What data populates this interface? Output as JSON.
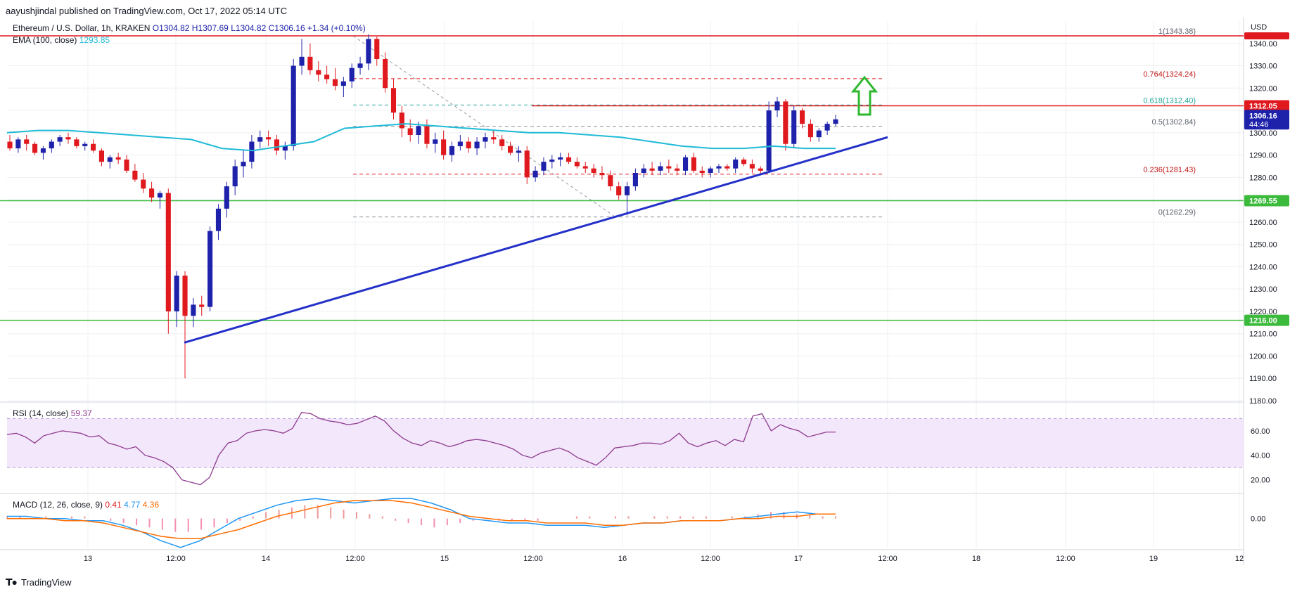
{
  "header": {
    "published": "aayushjindal published on TradingView.com, Oct 17, 2022 05:14 UTC"
  },
  "legend": {
    "symbol": "Ethereum / U.S. Dollar, 1h, KRAKEN",
    "open": "O1304.82",
    "high": "H1307.69",
    "low": "L1304.82",
    "close": "C1306.16",
    "change": "+1.34 (+0.10%)",
    "ema_label": "EMA (100, close)",
    "ema_value": "1293.85",
    "rsi_label": "RSI (14, close)",
    "rsi_value": "59.37",
    "macd_label": "MACD (12, 26, close, 9)",
    "macd_v1": "0.41",
    "macd_v2": "4.77",
    "macd_v3": "4.36"
  },
  "footer": {
    "brand": "TradingView"
  },
  "colors": {
    "up": "#1e22aa",
    "down": "#e0191e",
    "ema": "#1fbad6",
    "trend": "#2431c9",
    "support": "#3cba3c",
    "resistance": "#e0191e",
    "rsi": "#8e3a8e",
    "rsi_band": "#f3e7fb",
    "macd": "#2196f3",
    "signal": "#ff6d00",
    "arrow": "#2eb82e"
  },
  "chart_data": {
    "type": "candlestick",
    "symbol": "Ethereum / U.S. Dollar",
    "interval": "1h",
    "exchange": "KRAKEN",
    "currency": "USD",
    "ylim": [
      1180,
      1350
    ],
    "price_ticks": [
      "1180.00",
      "1190.00",
      "1200.00",
      "1210.00",
      "1220.00",
      "1230.00",
      "1240.00",
      "1250.00",
      "1260.00",
      "1270.00",
      "1280.00",
      "1290.00",
      "1300.00",
      "1310.00",
      "1320.00",
      "1330.00",
      "1340.00"
    ],
    "x_ticks": [
      "13",
      "12:00",
      "14",
      "12:00",
      "15",
      "12:00",
      "16",
      "12:00",
      "17",
      "12:00",
      "18",
      "12:00",
      "19",
      "12"
    ],
    "candles_ohlc": [
      [
        1296,
        1299,
        1292,
        1293
      ],
      [
        1293,
        1298,
        1291,
        1297
      ],
      [
        1297,
        1299,
        1292,
        1295
      ],
      [
        1295,
        1296,
        1290,
        1291
      ],
      [
        1291,
        1294,
        1288,
        1293
      ],
      [
        1293,
        1297,
        1291,
        1296
      ],
      [
        1296,
        1299,
        1294,
        1298
      ],
      [
        1298,
        1300,
        1295,
        1297
      ],
      [
        1297,
        1298,
        1293,
        1294
      ],
      [
        1294,
        1296,
        1292,
        1295
      ],
      [
        1295,
        1297,
        1291,
        1292
      ],
      [
        1292,
        1293,
        1285,
        1287
      ],
      [
        1287,
        1290,
        1284,
        1289
      ],
      [
        1289,
        1291,
        1286,
        1288
      ],
      [
        1288,
        1290,
        1282,
        1283
      ],
      [
        1283,
        1286,
        1278,
        1279
      ],
      [
        1279,
        1282,
        1273,
        1275
      ],
      [
        1275,
        1278,
        1269,
        1271
      ],
      [
        1271,
        1274,
        1266,
        1273
      ],
      [
        1273,
        1275,
        1210,
        1220
      ],
      [
        1220,
        1238,
        1213,
        1236
      ],
      [
        1236,
        1238,
        1190,
        1218
      ],
      [
        1218,
        1226,
        1213,
        1223
      ],
      [
        1223,
        1227,
        1218,
        1222
      ],
      [
        1222,
        1258,
        1220,
        1256
      ],
      [
        1256,
        1268,
        1252,
        1266
      ],
      [
        1266,
        1278,
        1262,
        1276
      ],
      [
        1276,
        1288,
        1272,
        1285
      ],
      [
        1285,
        1292,
        1280,
        1287
      ],
      [
        1287,
        1299,
        1284,
        1296
      ],
      [
        1296,
        1301,
        1293,
        1298
      ],
      [
        1298,
        1301,
        1294,
        1297
      ],
      [
        1297,
        1299,
        1290,
        1292
      ],
      [
        1292,
        1296,
        1288,
        1294
      ],
      [
        1294,
        1333,
        1292,
        1330
      ],
      [
        1330,
        1342,
        1326,
        1334
      ],
      [
        1334,
        1340,
        1326,
        1328
      ],
      [
        1328,
        1332,
        1323,
        1326
      ],
      [
        1326,
        1330,
        1322,
        1324
      ],
      [
        1324,
        1329,
        1319,
        1321
      ],
      [
        1321,
        1325,
        1316,
        1323
      ],
      [
        1323,
        1331,
        1320,
        1329
      ],
      [
        1329,
        1334,
        1326,
        1331
      ],
      [
        1331,
        1344,
        1328,
        1342
      ],
      [
        1342,
        1343,
        1330,
        1333
      ],
      [
        1333,
        1336,
        1318,
        1320
      ],
      [
        1320,
        1324,
        1306,
        1309
      ],
      [
        1309,
        1312,
        1298,
        1302
      ],
      [
        1302,
        1306,
        1296,
        1299
      ],
      [
        1299,
        1305,
        1295,
        1303
      ],
      [
        1303,
        1306,
        1293,
        1295
      ],
      [
        1295,
        1300,
        1291,
        1297
      ],
      [
        1297,
        1301,
        1288,
        1290
      ],
      [
        1290,
        1296,
        1287,
        1294
      ],
      [
        1294,
        1299,
        1292,
        1296
      ],
      [
        1296,
        1298,
        1291,
        1293
      ],
      [
        1293,
        1298,
        1290,
        1296
      ],
      [
        1296,
        1300,
        1293,
        1298
      ],
      [
        1298,
        1301,
        1295,
        1297
      ],
      [
        1297,
        1299,
        1292,
        1294
      ],
      [
        1294,
        1296,
        1290,
        1291
      ],
      [
        1291,
        1294,
        1287,
        1292
      ],
      [
        1292,
        1294,
        1277,
        1280
      ],
      [
        1280,
        1285,
        1278,
        1283
      ],
      [
        1283,
        1289,
        1281,
        1287
      ],
      [
        1287,
        1290,
        1284,
        1288
      ],
      [
        1288,
        1291,
        1285,
        1289
      ],
      [
        1289,
        1291,
        1286,
        1287
      ],
      [
        1287,
        1289,
        1284,
        1285
      ],
      [
        1285,
        1287,
        1282,
        1284
      ],
      [
        1284,
        1286,
        1280,
        1282
      ],
      [
        1282,
        1285,
        1279,
        1281
      ],
      [
        1281,
        1283,
        1274,
        1276
      ],
      [
        1276,
        1278,
        1270,
        1272
      ],
      [
        1272,
        1278,
        1263,
        1276
      ],
      [
        1276,
        1284,
        1274,
        1282
      ],
      [
        1282,
        1286,
        1280,
        1284
      ],
      [
        1284,
        1287,
        1281,
        1283
      ],
      [
        1283,
        1287,
        1281,
        1285
      ],
      [
        1285,
        1288,
        1282,
        1284
      ],
      [
        1284,
        1286,
        1281,
        1283
      ],
      [
        1283,
        1290,
        1281,
        1289
      ],
      [
        1289,
        1291,
        1282,
        1283
      ],
      [
        1283,
        1285,
        1280,
        1282
      ],
      [
        1282,
        1285,
        1280,
        1284
      ],
      [
        1284,
        1286,
        1282,
        1285
      ],
      [
        1285,
        1286,
        1283,
        1284
      ],
      [
        1284,
        1289,
        1282,
        1288
      ],
      [
        1288,
        1289,
        1285,
        1286
      ],
      [
        1286,
        1288,
        1282,
        1284
      ],
      [
        1284,
        1285,
        1281,
        1283
      ],
      [
        1283,
        1314,
        1282,
        1310
      ],
      [
        1310,
        1316,
        1307,
        1314
      ],
      [
        1314,
        1315,
        1292,
        1295
      ],
      [
        1295,
        1312,
        1293,
        1310
      ],
      [
        1310,
        1311,
        1302,
        1304
      ],
      [
        1304,
        1306,
        1296,
        1298
      ],
      [
        1298,
        1302,
        1296,
        1301
      ],
      [
        1301,
        1305,
        1299,
        1304
      ],
      [
        1304,
        1308,
        1303,
        1306
      ]
    ],
    "ema_100": [
      1300,
      1301,
      1301,
      1300,
      1299,
      1298,
      1297,
      1293,
      1292,
      1294,
      1296,
      1302,
      1303,
      1304,
      1303,
      1302,
      1301,
      1300,
      1300,
      1299,
      1298,
      1296,
      1294,
      1293,
      1293,
      1294,
      1293,
      1293
    ],
    "fibonacci": [
      {
        "level": "1",
        "value": 1343.38
      },
      {
        "level": "0.764",
        "value": 1324.24
      },
      {
        "level": "0.618",
        "value": 1312.4
      },
      {
        "level": "0.5",
        "value": 1302.84
      },
      {
        "level": "0.236",
        "value": 1281.43
      },
      {
        "level": "0",
        "value": 1262.29
      }
    ],
    "fib_labels": [
      "1(1343.38)",
      "0.764(1324.24)",
      "0.618(1312.40)",
      "0.5(1302.84)",
      "0.236(1281.43)",
      "0(1262.29)"
    ],
    "price_badges": [
      "1306.16",
      "44:46",
      "1312.05",
      "1269.55",
      "1216.00"
    ],
    "horizontal_levels": [
      {
        "value": 1343.38,
        "color": "red"
      },
      {
        "value": 1312.05,
        "color": "red"
      },
      {
        "value": 1269.55,
        "color": "green"
      },
      {
        "value": 1216.0,
        "color": "green"
      }
    ],
    "trendline": {
      "from": 1206,
      "to": 1298
    },
    "rsi": {
      "ylim": [
        10,
        80
      ],
      "ticks": [
        "20.00",
        "40.00",
        "60.00"
      ],
      "band": [
        30,
        70
      ],
      "values": [
        57,
        58,
        55,
        50,
        56,
        58,
        60,
        59,
        58,
        55,
        56,
        50,
        48,
        45,
        47,
        40,
        38,
        35,
        30,
        20,
        18,
        16,
        22,
        40,
        50,
        52,
        58,
        60,
        61,
        60,
        58,
        62,
        75,
        74,
        70,
        68,
        67,
        65,
        66,
        69,
        72,
        68,
        60,
        54,
        50,
        48,
        52,
        50,
        47,
        49,
        52,
        53,
        52,
        50,
        48,
        45,
        40,
        38,
        42,
        44,
        46,
        43,
        38,
        35,
        32,
        38,
        46,
        47,
        48,
        50,
        50,
        49,
        52,
        58,
        50,
        47,
        50,
        52,
        48,
        53,
        51,
        72,
        74,
        60,
        65,
        62,
        60,
        55,
        57,
        59,
        59
      ]
    },
    "macd": {
      "ylim": [
        -14,
        10
      ],
      "ticks": [
        "0.00"
      ],
      "macd_line": [
        1,
        1,
        0,
        0,
        -1,
        -1,
        -3,
        -6,
        -10,
        -13,
        -10,
        -5,
        0,
        3,
        6,
        8,
        9,
        8,
        7,
        8,
        9,
        9,
        7,
        4,
        0,
        -1,
        -2,
        -2,
        -3,
        -3,
        -3,
        -4,
        -3,
        -2,
        -2,
        -1,
        -1,
        -1,
        0,
        1,
        2,
        3,
        2,
        2
      ],
      "signal_line": [
        0,
        0,
        0,
        -1,
        -1,
        -2,
        -4,
        -6,
        -8,
        -9,
        -9,
        -7,
        -5,
        -2,
        1,
        3,
        5,
        7,
        8,
        8,
        8,
        7,
        5,
        3,
        1,
        0,
        -1,
        -1,
        -2,
        -2,
        -2,
        -3,
        -3,
        -2,
        -2,
        -1,
        -1,
        -1,
        0,
        0,
        1,
        1,
        2,
        2
      ],
      "histogram": [
        1,
        1,
        0,
        1,
        0,
        1,
        1,
        0,
        -1,
        -2,
        -3,
        -4,
        -5,
        -6,
        -6,
        -5,
        -4,
        -2,
        -1,
        1,
        3,
        4,
        5,
        6,
        6,
        5,
        4,
        3,
        2,
        1,
        -1,
        -2,
        -3,
        -4,
        -3,
        -2,
        -1,
        0,
        -1,
        -1,
        -1,
        -1,
        0,
        0,
        1,
        1,
        0,
        1,
        1,
        0,
        1,
        1,
        1,
        1,
        1,
        0,
        1,
        1,
        2,
        3,
        3,
        2,
        2,
        1,
        1
      ]
    }
  }
}
